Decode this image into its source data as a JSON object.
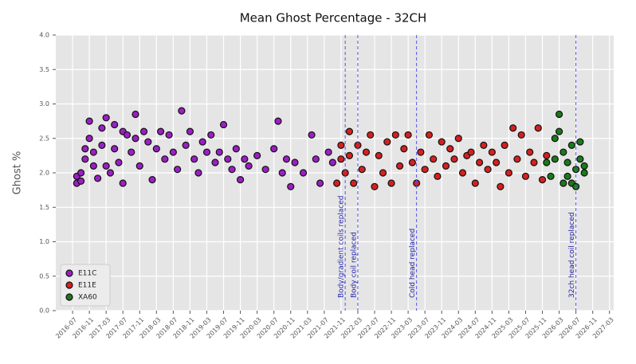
{
  "chart_data": {
    "type": "scatter",
    "title": "Mean Ghost Percentage - 32CH",
    "ylabel": "Ghost %",
    "xlim": [
      "2016-03",
      "2027-04"
    ],
    "xticks": [
      "2016-07",
      "2016-11",
      "2017-03",
      "2017-07",
      "2017-11",
      "2018-03",
      "2018-07",
      "2018-11",
      "2019-03",
      "2019-07",
      "2019-11",
      "2020-03",
      "2020-07",
      "2020-11",
      "2021-03",
      "2021-07",
      "2021-11",
      "2022-03",
      "2022-07",
      "2022-11",
      "2023-03",
      "2023-07",
      "2023-11",
      "2024-03",
      "2024-07",
      "2024-11",
      "2025-03",
      "2025-07",
      "2025-11",
      "2026-03",
      "2026-07",
      "2026-11",
      "2027-03"
    ],
    "ylim": [
      0,
      4
    ],
    "yticks": [
      {
        "value": 0,
        "label": "0.0"
      },
      {
        "value": 0.5,
        "label": "0.5"
      },
      {
        "value": 1,
        "label": "1.0"
      },
      {
        "value": 1.5,
        "label": "1.5"
      },
      {
        "value": 2,
        "label": "2.0"
      },
      {
        "value": 2.5,
        "label": "2.5"
      },
      {
        "value": 3,
        "label": "3.0"
      },
      {
        "value": 3.5,
        "label": "3.5"
      },
      {
        "value": 4,
        "label": "4.0"
      }
    ],
    "grid": true,
    "legend": "lower left",
    "series": [
      {
        "name": "E11C",
        "color": "#9b1fc4",
        "x": [
          "2016-08",
          "2016-08",
          "2016-09",
          "2016-09",
          "2016-10",
          "2016-10",
          "2016-11",
          "2016-11",
          "2016-12",
          "2016-12",
          "2017-01",
          "2017-02",
          "2017-02",
          "2017-03",
          "2017-03",
          "2017-04",
          "2017-05",
          "2017-05",
          "2017-06",
          "2017-07",
          "2017-07",
          "2017-08",
          "2017-09",
          "2017-10",
          "2017-10",
          "2017-11",
          "2017-12",
          "2018-01",
          "2018-02",
          "2018-03",
          "2018-04",
          "2018-05",
          "2018-06",
          "2018-07",
          "2018-08",
          "2018-09",
          "2018-10",
          "2018-11",
          "2018-12",
          "2019-01",
          "2019-02",
          "2019-03",
          "2019-04",
          "2019-05",
          "2019-06",
          "2019-07",
          "2019-08",
          "2019-09",
          "2019-10",
          "2019-11",
          "2019-12",
          "2020-01",
          "2020-03",
          "2020-05",
          "2020-07",
          "2020-08",
          "2020-09",
          "2020-10",
          "2020-11",
          "2020-12",
          "2021-02",
          "2021-04",
          "2021-05",
          "2021-06",
          "2021-08",
          "2021-09"
        ],
        "values": [
          1.85,
          1.95,
          2.0,
          1.88,
          2.2,
          2.35,
          2.75,
          2.5,
          2.1,
          2.3,
          1.92,
          2.65,
          2.4,
          2.8,
          2.1,
          2.0,
          2.7,
          2.35,
          2.15,
          2.6,
          1.85,
          2.55,
          2.3,
          2.85,
          2.5,
          2.1,
          2.6,
          2.45,
          1.9,
          2.35,
          2.6,
          2.2,
          2.55,
          2.3,
          2.05,
          2.9,
          2.4,
          2.6,
          2.2,
          2.0,
          2.45,
          2.3,
          2.55,
          2.15,
          2.3,
          2.7,
          2.2,
          2.05,
          2.35,
          1.9,
          2.2,
          2.1,
          2.25,
          2.05,
          2.35,
          2.75,
          2.0,
          2.2,
          1.8,
          2.15,
          2.0,
          2.55,
          2.2,
          1.85,
          2.3,
          2.15
        ]
      },
      {
        "name": "E11E",
        "color": "#d62020",
        "x": [
          "2021-10",
          "2021-11",
          "2021-11",
          "2021-12",
          "2022-01",
          "2022-01",
          "2022-02",
          "2022-03",
          "2022-04",
          "2022-05",
          "2022-06",
          "2022-07",
          "2022-08",
          "2022-09",
          "2022-10",
          "2022-11",
          "2022-12",
          "2023-01",
          "2023-02",
          "2023-03",
          "2023-04",
          "2023-05",
          "2023-06",
          "2023-07",
          "2023-08",
          "2023-09",
          "2023-10",
          "2023-11",
          "2023-12",
          "2024-01",
          "2024-02",
          "2024-03",
          "2024-04",
          "2024-05",
          "2024-06",
          "2024-07",
          "2024-08",
          "2024-09",
          "2024-10",
          "2024-11",
          "2024-12",
          "2025-01",
          "2025-02",
          "2025-03",
          "2025-04",
          "2025-05",
          "2025-06",
          "2025-07",
          "2025-08",
          "2025-09",
          "2025-10",
          "2025-11",
          "2025-12"
        ],
        "values": [
          1.85,
          2.2,
          2.4,
          2.0,
          2.6,
          2.25,
          1.85,
          2.4,
          2.05,
          2.3,
          2.55,
          1.8,
          2.25,
          2.0,
          2.45,
          1.85,
          2.55,
          2.1,
          2.35,
          2.55,
          2.15,
          1.85,
          2.3,
          2.05,
          2.55,
          2.2,
          1.95,
          2.45,
          2.1,
          2.35,
          2.2,
          2.5,
          2.0,
          2.25,
          2.3,
          1.85,
          2.15,
          2.4,
          2.05,
          2.3,
          2.15,
          1.8,
          2.4,
          2.0,
          2.65,
          2.2,
          2.55,
          1.95,
          2.3,
          2.15,
          2.65,
          1.9,
          2.25
        ]
      },
      {
        "name": "XA60",
        "color": "#1a7a1a",
        "x": [
          "2025-12",
          "2026-01",
          "2026-02",
          "2026-02",
          "2026-03",
          "2026-03",
          "2026-04",
          "2026-04",
          "2026-05",
          "2026-05",
          "2026-06",
          "2026-06",
          "2026-07",
          "2026-07",
          "2026-08",
          "2026-08",
          "2026-09",
          "2026-09"
        ],
        "values": [
          2.15,
          1.95,
          2.2,
          2.5,
          2.85,
          2.6,
          1.85,
          2.3,
          1.95,
          2.15,
          1.85,
          2.4,
          1.8,
          2.05,
          2.45,
          2.2,
          2.1,
          2.0
        ]
      }
    ],
    "vlines": [
      {
        "x": "2021-12",
        "label": "Body/gradient coils replaced",
        "color": "#5555ee"
      },
      {
        "x": "2022-03",
        "label": "Body coil replaced",
        "color": "#5555ee"
      },
      {
        "x": "2023-05",
        "label": "Cold head replaced",
        "color": "#5555ee"
      },
      {
        "x": "2026-07",
        "label": "32ch head coil replaced",
        "color": "#5555ee"
      }
    ]
  }
}
